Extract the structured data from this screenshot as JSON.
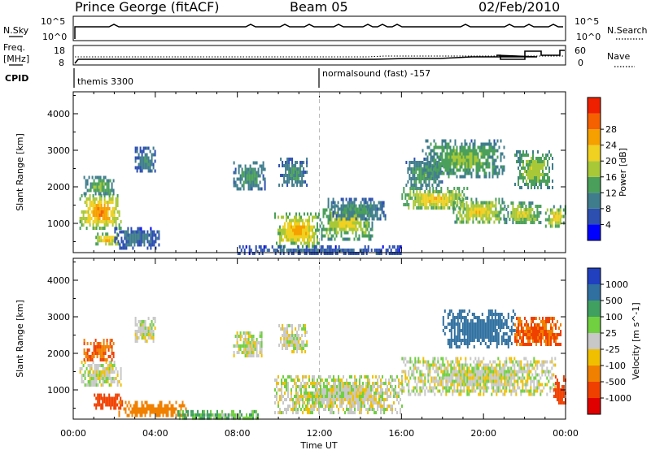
{
  "header": {
    "station": "Prince George (fitACF)",
    "beam": "Beam 05",
    "date": "02/Feb/2010"
  },
  "top_panels": {
    "nsky_label": "N.Sky",
    "nsky_ticks": [
      "10^5",
      "10^0"
    ],
    "nsearch_label": "N.Search",
    "nsearch_ticks": [
      "10^5",
      "10^0"
    ],
    "freq_label_1": "Freq.",
    "freq_label_2": "[MHz]",
    "freq_ticks": [
      "18",
      "8"
    ],
    "nave_label": "Nave",
    "nave_ticks": [
      "60",
      "0"
    ],
    "cpid_label": "CPID",
    "cpid_entries": [
      {
        "text": "themis 3300",
        "start": 0
      },
      {
        "text": "normalsound (fast) -157",
        "start": 12
      }
    ]
  },
  "chart_data": [
    {
      "type": "heatmap",
      "title": "",
      "xlabel": "Time UT",
      "ylabel": "Slant Range [km]",
      "xlim": [
        0,
        24
      ],
      "ylim": [
        200,
        4600
      ],
      "x_tick_labels": [
        "00:00",
        "04:00",
        "08:00",
        "12:00",
        "16:00",
        "20:00",
        "00:00"
      ],
      "y_tick_labels": [
        "1000",
        "2000",
        "3000",
        "4000"
      ],
      "colorbar": {
        "label": "Power [dB]",
        "ticks": [
          "4",
          "8",
          "12",
          "16",
          "20",
          "24",
          "28"
        ],
        "colors": [
          "#0000ff",
          "#2c4fb0",
          "#3f7d8c",
          "#4aa05a",
          "#a8c838",
          "#f0d020",
          "#f6a000",
          "#f56000",
          "#ee2000"
        ]
      },
      "regions": [
        {
          "t0": 0.3,
          "t1": 2.3,
          "r0": 900,
          "r1": 1800,
          "v": 24
        },
        {
          "t0": 0.5,
          "t1": 2.0,
          "r0": 1800,
          "r1": 2300,
          "v": 14
        },
        {
          "t0": 1.0,
          "t1": 2.2,
          "r0": 450,
          "r1": 750,
          "v": 22
        },
        {
          "t0": 2.0,
          "t1": 4.2,
          "r0": 350,
          "r1": 900,
          "v": 7
        },
        {
          "t0": 3.0,
          "t1": 4.0,
          "r0": 2400,
          "r1": 3100,
          "v": 9
        },
        {
          "t0": 7.8,
          "t1": 9.4,
          "r0": 1900,
          "r1": 2700,
          "v": 11
        },
        {
          "t0": 10.0,
          "t1": 11.4,
          "r0": 2000,
          "r1": 2800,
          "v": 10
        },
        {
          "t0": 9.8,
          "t1": 12.0,
          "r0": 400,
          "r1": 1300,
          "v": 22
        },
        {
          "t0": 12.0,
          "t1": 14.6,
          "r0": 600,
          "r1": 1500,
          "v": 18
        },
        {
          "t0": 12.4,
          "t1": 15.2,
          "r0": 1100,
          "r1": 1700,
          "v": 10
        },
        {
          "t0": 16.0,
          "t1": 19.2,
          "r0": 1400,
          "r1": 2000,
          "v": 20
        },
        {
          "t0": 16.2,
          "t1": 18.0,
          "r0": 2000,
          "r1": 2800,
          "v": 12
        },
        {
          "t0": 17.0,
          "t1": 21.0,
          "r0": 2300,
          "r1": 3300,
          "v": 14
        },
        {
          "t0": 18.5,
          "t1": 21.0,
          "r0": 1000,
          "r1": 1700,
          "v": 19
        },
        {
          "t0": 21.5,
          "t1": 23.4,
          "r0": 2000,
          "r1": 3000,
          "v": 16
        },
        {
          "t0": 21.0,
          "t1": 22.8,
          "r0": 1000,
          "r1": 1600,
          "v": 17
        },
        {
          "t0": 23.0,
          "t1": 24.0,
          "r0": 900,
          "r1": 1500,
          "v": 20
        },
        {
          "t0": 8.0,
          "t1": 16.0,
          "r0": 200,
          "r1": 400,
          "v": 6
        }
      ]
    },
    {
      "type": "heatmap",
      "title": "",
      "xlabel": "Time UT",
      "ylabel": "Slant Range [km]",
      "xlim": [
        0,
        24
      ],
      "ylim": [
        200,
        4600
      ],
      "x_tick_labels": [
        "00:00",
        "04:00",
        "08:00",
        "12:00",
        "16:00",
        "20:00",
        "00:00"
      ],
      "y_tick_labels": [
        "1000",
        "2000",
        "3000",
        "4000"
      ],
      "colorbar": {
        "label": "Velocity [m s^-1]",
        "ticks": [
          "1000",
          "500",
          "100",
          "25",
          "-25",
          "-100",
          "-500",
          "-1000"
        ],
        "colors": [
          "#2040c0",
          "#3070a0",
          "#40a060",
          "#70d040",
          "#c8c8c8",
          "#f0c000",
          "#f08000",
          "#f04000",
          "#e00000"
        ]
      },
      "regions": [
        {
          "t0": 0.3,
          "t1": 2.3,
          "r0": 1100,
          "r1": 1800,
          "v": 0
        },
        {
          "t0": 0.5,
          "t1": 2.0,
          "r0": 1800,
          "r1": 2400,
          "v": -300
        },
        {
          "t0": 1.0,
          "t1": 2.4,
          "r0": 500,
          "r1": 900,
          "v": -400
        },
        {
          "t0": 2.2,
          "t1": 5.5,
          "r0": 300,
          "r1": 700,
          "v": -150
        },
        {
          "t0": 3.0,
          "t1": 4.0,
          "r0": 2300,
          "r1": 3000,
          "v": 0
        },
        {
          "t0": 7.8,
          "t1": 9.2,
          "r0": 1900,
          "r1": 2600,
          "v": 0
        },
        {
          "t0": 10.0,
          "t1": 11.4,
          "r0": 2000,
          "r1": 2800,
          "v": 0
        },
        {
          "t0": 9.8,
          "t1": 16.0,
          "r0": 400,
          "r1": 1400,
          "v": 0
        },
        {
          "t0": 16.0,
          "t1": 23.5,
          "r0": 900,
          "r1": 1900,
          "v": 0
        },
        {
          "t0": 18.0,
          "t1": 21.5,
          "r0": 2200,
          "r1": 3200,
          "v": 600
        },
        {
          "t0": 21.5,
          "t1": 23.8,
          "r0": 2200,
          "r1": 3000,
          "v": -300
        },
        {
          "t0": 23.4,
          "t1": 24.0,
          "r0": 600,
          "r1": 1400,
          "v": -700
        },
        {
          "t0": 5.0,
          "t1": 9.0,
          "r0": 200,
          "r1": 450,
          "v": 60
        }
      ]
    }
  ]
}
